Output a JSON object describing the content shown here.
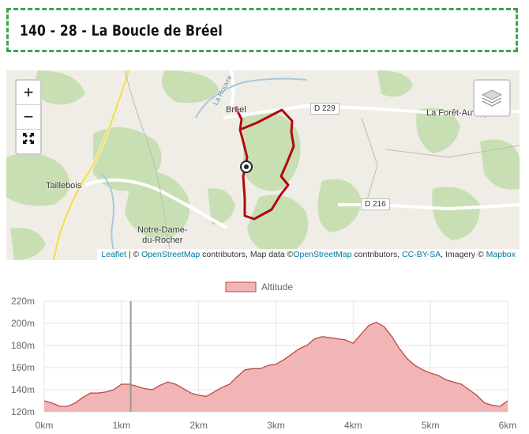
{
  "page": {
    "title": "140 - 28 - La Boucle de Bréel"
  },
  "map": {
    "zoom_in": "+",
    "zoom_out": "−",
    "fullscreen": "⛶",
    "labels": {
      "breel": "Bréel",
      "foret": "La Forêt-Auvray",
      "taillebois": "Taillebois",
      "notre_dame": "Notre-Dame-\ndu-Rocher",
      "notre_dame_1": "Notre-Dame-",
      "notre_dame_2": "du-Rocher",
      "rouvre": "La Rouvre",
      "d229": "D 229",
      "d216": "D 216"
    },
    "attribution": {
      "leaflet": "Leaflet",
      "sep1": " | © ",
      "osm1": "OpenStreetMap",
      "text1": " contributors, Map data ©",
      "osm2": "OpenStreetMap",
      "text2": " contributors, ",
      "license": "CC-BY-SA",
      "text3": ", Imagery © ",
      "mapbox": "Mapbox"
    }
  },
  "chart_data": {
    "type": "area",
    "legend": "Altitude",
    "legend_position": "top-center",
    "x_ticks": [
      "0km",
      "1km",
      "2km",
      "3km",
      "4km",
      "5km",
      "6km"
    ],
    "y_ticks": [
      "120m",
      "140m",
      "160m",
      "180m",
      "200m",
      "220m"
    ],
    "xlim": [
      0,
      6
    ],
    "ylim": [
      120,
      220
    ],
    "grid": true,
    "cursor_x": 1.12,
    "fill_color": "#f2b5b5",
    "line_color": "#b94a48",
    "series": [
      {
        "name": "Altitude",
        "x": [
          0,
          0.1,
          0.2,
          0.3,
          0.4,
          0.5,
          0.6,
          0.7,
          0.8,
          0.9,
          1.0,
          1.1,
          1.2,
          1.3,
          1.4,
          1.5,
          1.6,
          1.7,
          1.8,
          1.9,
          2.0,
          2.1,
          2.2,
          2.3,
          2.4,
          2.5,
          2.6,
          2.7,
          2.8,
          2.9,
          3.0,
          3.1,
          3.2,
          3.3,
          3.4,
          3.5,
          3.6,
          3.7,
          3.8,
          3.9,
          4.0,
          4.1,
          4.2,
          4.3,
          4.4,
          4.5,
          4.6,
          4.7,
          4.8,
          4.9,
          5.0,
          5.1,
          5.2,
          5.3,
          5.4,
          5.5,
          5.6,
          5.7,
          5.8,
          5.9,
          6.0
        ],
        "values": [
          130,
          128,
          125,
          125,
          128,
          133,
          137,
          137,
          138,
          140,
          145,
          145,
          143,
          141,
          140,
          144,
          147,
          145,
          141,
          137,
          135,
          134,
          138,
          142,
          145,
          152,
          158,
          159,
          159,
          162,
          163,
          167,
          172,
          177,
          180,
          186,
          188,
          187,
          186,
          185,
          182,
          190,
          198,
          201,
          197,
          188,
          177,
          168,
          162,
          158,
          155,
          153,
          149,
          147,
          145,
          140,
          135,
          128,
          126,
          125,
          130
        ]
      }
    ]
  }
}
